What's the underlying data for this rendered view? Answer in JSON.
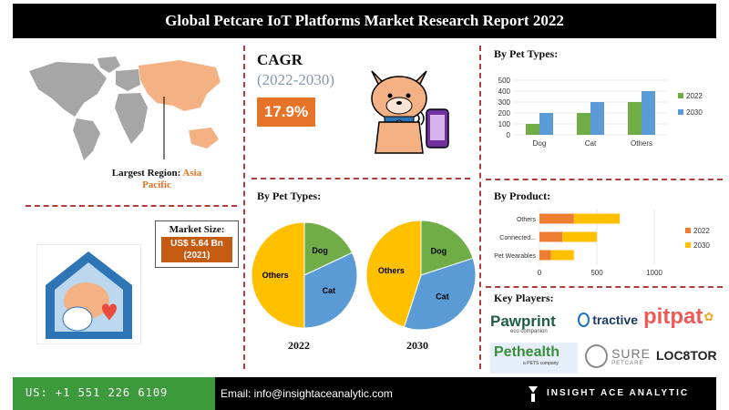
{
  "header": {
    "title": "Global Petcare IoT Platforms Market Research Report 2022"
  },
  "region": {
    "label": "Largest Region:",
    "value_line1": "Asia",
    "value_line2": "Pacific"
  },
  "cagr": {
    "label": "CAGR",
    "period": "(2022-2030)",
    "value": "17.9%"
  },
  "market_size": {
    "label": "Market Size:",
    "value": "US$ 5.64 Bn",
    "year": "(2021)"
  },
  "titles": {
    "pet_types_bar": "By Pet Types:",
    "pet_types_pie": "By Pet Types:",
    "product": "By Product:",
    "key_players": "Key Players:"
  },
  "players": {
    "pawprint": "Pawprint",
    "pawprint_sub": "eco companion",
    "tractive": "tractive",
    "pitpat": "pitpat",
    "pethealth": "Pethealth",
    "pethealth_sub": "a PETS company",
    "sure": "SURE",
    "sure_sub": "PETCARE",
    "locator": "LOC8TOR"
  },
  "footer": {
    "phone": "US: +1 551 226 6109",
    "email": "Email: info@insightaceanalytic.com",
    "brand": "INSIGHT ACE ANALYTIC"
  },
  "colors": {
    "green": "#70ad47",
    "blue": "#5b9bd5",
    "orange": "#ed7d31",
    "yellow": "#ffc000",
    "accent": "#e57328"
  },
  "chart_data": [
    {
      "type": "bar",
      "title": "By Pet Types:",
      "categories": [
        "Dog",
        "Cat",
        "Others"
      ],
      "series": [
        {
          "name": "2022",
          "values": [
            100,
            200,
            300
          ],
          "color": "#70ad47"
        },
        {
          "name": "2030",
          "values": [
            200,
            300,
            400
          ],
          "color": "#5b9bd5"
        }
      ],
      "ylim": [
        0,
        500
      ],
      "yticks": [
        0,
        100,
        200,
        300,
        400,
        500
      ],
      "legend": "right"
    },
    {
      "type": "pie",
      "title": "By Pet Types:",
      "caption": "2022",
      "slices": [
        {
          "label": "Dog",
          "value": 18,
          "color": "#70ad47"
        },
        {
          "label": "Cat",
          "value": 32,
          "color": "#5b9bd5"
        },
        {
          "label": "Others",
          "value": 50,
          "color": "#ffc000"
        }
      ]
    },
    {
      "type": "pie",
      "caption": "2030",
      "slices": [
        {
          "label": "Dog",
          "value": 20,
          "color": "#70ad47"
        },
        {
          "label": "Cat",
          "value": 35,
          "color": "#5b9bd5"
        },
        {
          "label": "Others",
          "value": 45,
          "color": "#ffc000"
        }
      ]
    },
    {
      "type": "bar",
      "orientation": "horizontal-stacked",
      "title": "By Product:",
      "categories": [
        "Others",
        "Connected...",
        "Pet Wearables"
      ],
      "series": [
        {
          "name": "2022",
          "values": [
            300,
            200,
            100
          ],
          "color": "#ed7d31"
        },
        {
          "name": "2030",
          "values": [
            400,
            300,
            200
          ],
          "color": "#ffc000"
        }
      ],
      "xlim": [
        0,
        1000
      ],
      "xticks": [
        0,
        500,
        1000
      ],
      "legend": "right"
    }
  ]
}
